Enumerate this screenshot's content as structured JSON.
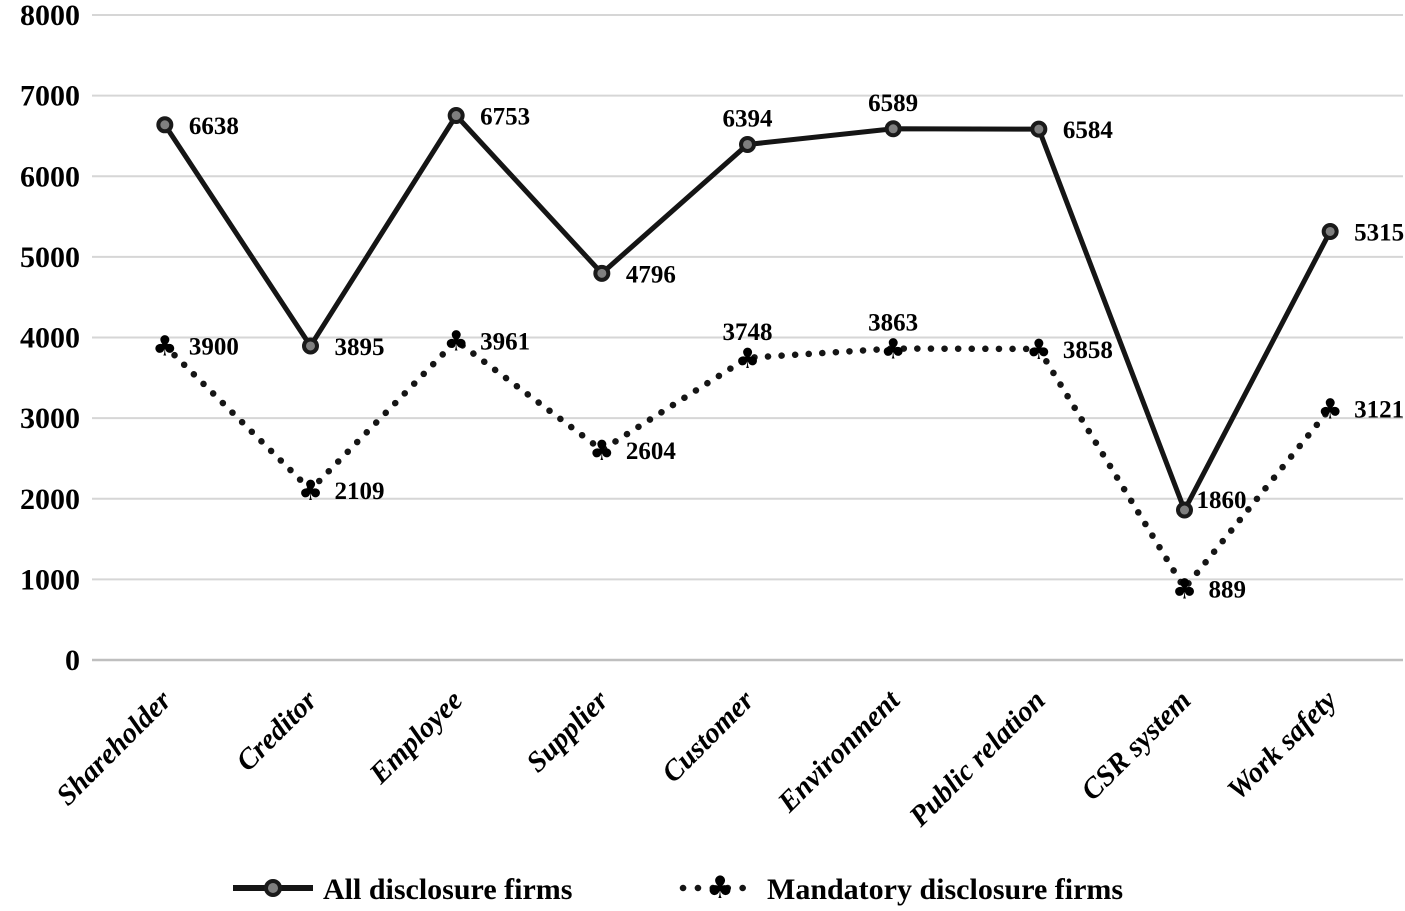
{
  "chart_data": {
    "type": "line",
    "categories": [
      "Shareholder",
      "Creditor",
      "Employee",
      "Supplier",
      "Customer",
      "Environment",
      "Public relation",
      "CSR system",
      "Work safety"
    ],
    "series": [
      {
        "name": "All disclosure firms",
        "line_style": "solid",
        "marker": "circle",
        "values": [
          6638,
          3895,
          6753,
          4796,
          6394,
          6589,
          6584,
          1860,
          5315
        ],
        "label_positions": [
          "right",
          "right",
          "right",
          "right",
          "above",
          "above",
          "right",
          "right-close",
          "right"
        ]
      },
      {
        "name": "Mandatory disclosure firms",
        "line_style": "dotted",
        "marker": "club",
        "values": [
          3900,
          2109,
          3961,
          2604,
          3748,
          3863,
          3858,
          889,
          3121
        ],
        "label_positions": [
          "right",
          "right",
          "right",
          "right",
          "above",
          "above",
          "right",
          "right",
          "right"
        ]
      }
    ],
    "ylim": [
      0,
      8000
    ],
    "yticks": [
      0,
      1000,
      2000,
      3000,
      4000,
      5000,
      6000,
      7000,
      8000
    ],
    "grid": true,
    "data_labels": true,
    "legend_position": "bottom-center",
    "x_label_rotation_deg": -45,
    "marker_glyphs": {
      "club": "♣"
    },
    "colors": {
      "line": "#151515",
      "marker_fill": "#7f7f7f",
      "marker_stroke": "#1a1a1a",
      "gridline": "#d6d6d6",
      "axis_line": "#bfbfbf",
      "text": "#000000",
      "background": "#ffffff"
    }
  }
}
